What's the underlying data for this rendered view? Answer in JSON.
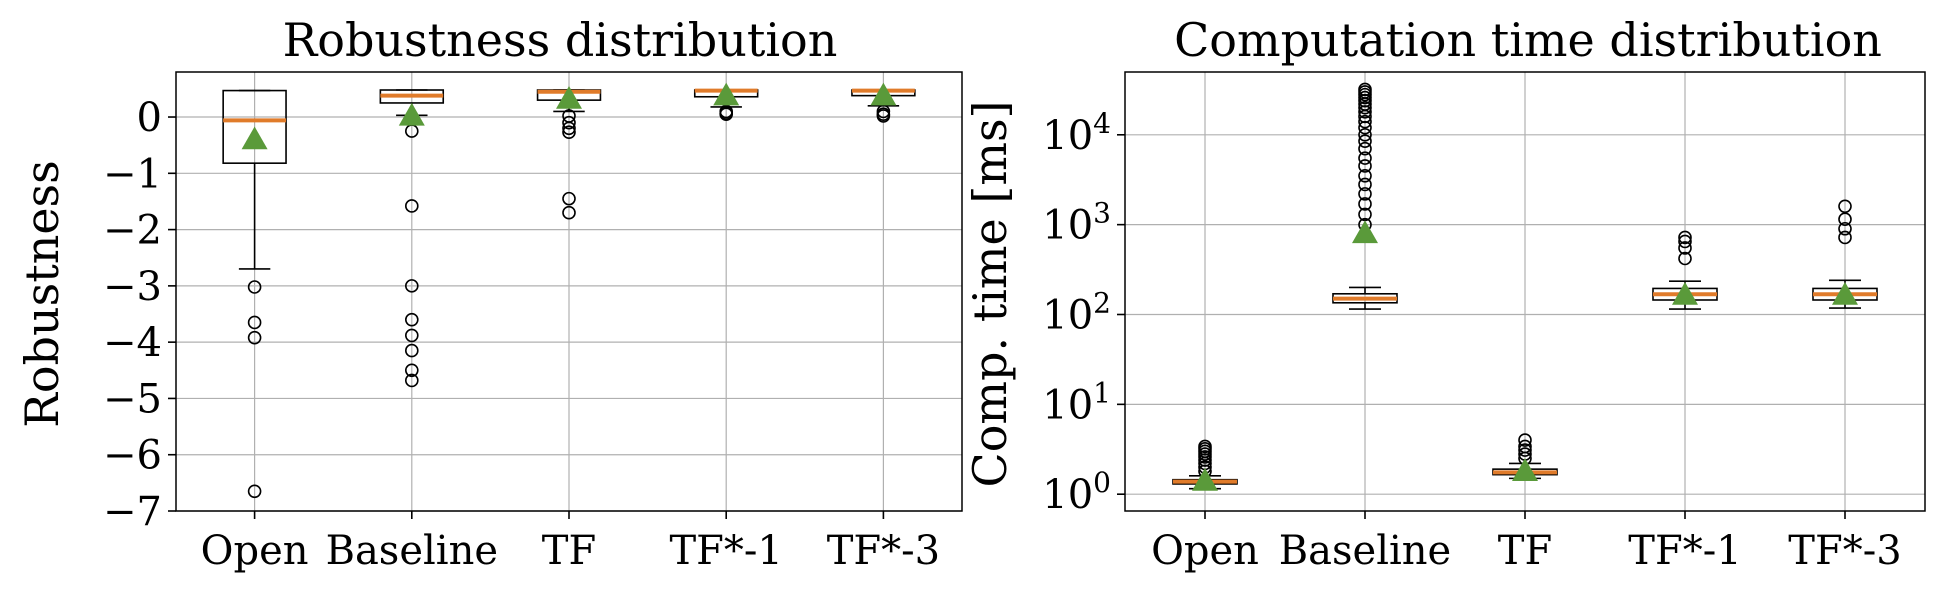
{
  "chart_data": [
    {
      "type": "box",
      "title": "Robustness distribution",
      "ylabel": "Robustness",
      "xlabel": "",
      "yscale": "linear",
      "ylim": [
        -7.0,
        0.8
      ],
      "yticks": [
        0,
        -1,
        -2,
        -3,
        -4,
        -5,
        -6,
        -7
      ],
      "ytick_labels": [
        "0",
        "−1",
        "−2",
        "−3",
        "−4",
        "−5",
        "−6",
        "−7"
      ],
      "grid": true,
      "categories": [
        "Open",
        "Baseline",
        "TF",
        "TF*-1",
        "TF*-3"
      ],
      "boxes": [
        {
          "whislo": -2.7,
          "q1": -0.82,
          "med": -0.06,
          "q3": 0.47,
          "whishi": 0.47,
          "mean": -0.4,
          "fliers": [
            -3.02,
            -3.65,
            -3.92,
            -6.65
          ]
        },
        {
          "whislo": 0.03,
          "q1": 0.25,
          "med": 0.38,
          "q3": 0.48,
          "whishi": 0.48,
          "mean": 0.02,
          "fliers": [
            -0.25,
            -1.58,
            -3.0,
            -3.6,
            -3.88,
            -4.15,
            -4.5,
            -4.68
          ]
        },
        {
          "whislo": 0.1,
          "q1": 0.3,
          "med": 0.45,
          "q3": 0.48,
          "whishi": 0.48,
          "mean": 0.32,
          "fliers": [
            0.02,
            -0.1,
            -0.2,
            -0.27,
            -1.45,
            -1.7
          ]
        },
        {
          "whislo": 0.18,
          "q1": 0.36,
          "med": 0.47,
          "q3": 0.48,
          "whishi": 0.48,
          "mean": 0.38,
          "fliers": [
            0.05,
            0.07,
            0.1
          ]
        },
        {
          "whislo": 0.2,
          "q1": 0.38,
          "med": 0.47,
          "q3": 0.48,
          "whishi": 0.48,
          "mean": 0.38,
          "fliers": [
            0.02,
            0.05,
            0.1
          ]
        }
      ]
    },
    {
      "type": "box",
      "title": "Computation time distribution",
      "ylabel": "Comp. time [ms]",
      "xlabel": "",
      "yscale": "log",
      "ylim": [
        0.65,
        50000
      ],
      "yticks": [
        1,
        10,
        100,
        1000,
        10000
      ],
      "ytick_labels": [
        {
          "base": "10",
          "exp": "0"
        },
        {
          "base": "10",
          "exp": "1"
        },
        {
          "base": "10",
          "exp": "2"
        },
        {
          "base": "10",
          "exp": "3"
        },
        {
          "base": "10",
          "exp": "4"
        }
      ],
      "grid": true,
      "categories": [
        "Open",
        "Baseline",
        "TF",
        "TF*-1",
        "TF*-3"
      ],
      "boxes": [
        {
          "whislo": 1.15,
          "q1": 1.3,
          "med": 1.38,
          "q3": 1.45,
          "whishi": 1.6,
          "mean": 1.4,
          "fliers": [
            1.8,
            2.0,
            2.2,
            2.4,
            2.6,
            2.8,
            3.0,
            3.2,
            3.4
          ]
        },
        {
          "whislo": 115,
          "q1": 135,
          "med": 150,
          "q3": 170,
          "whishi": 200,
          "mean": 800,
          "fliers": [
            1000,
            1300,
            1700,
            2200,
            2800,
            3500,
            4500,
            5500,
            7000,
            8500,
            10000,
            12000,
            14000,
            16000,
            18000,
            20000,
            22000,
            24000,
            26000,
            28000,
            30000,
            32000
          ]
        },
        {
          "whislo": 1.5,
          "q1": 1.65,
          "med": 1.75,
          "q3": 1.9,
          "whishi": 2.2,
          "mean": 1.8,
          "fliers": [
            2.5,
            2.8,
            3.1,
            3.4,
            4.0
          ]
        },
        {
          "whislo": 115,
          "q1": 145,
          "med": 168,
          "q3": 195,
          "whishi": 235,
          "mean": 165,
          "fliers": [
            420,
            550,
            650,
            720
          ]
        },
        {
          "whislo": 118,
          "q1": 145,
          "med": 168,
          "q3": 195,
          "whishi": 240,
          "mean": 165,
          "fliers": [
            720,
            900,
            1150,
            1600
          ]
        }
      ]
    }
  ]
}
